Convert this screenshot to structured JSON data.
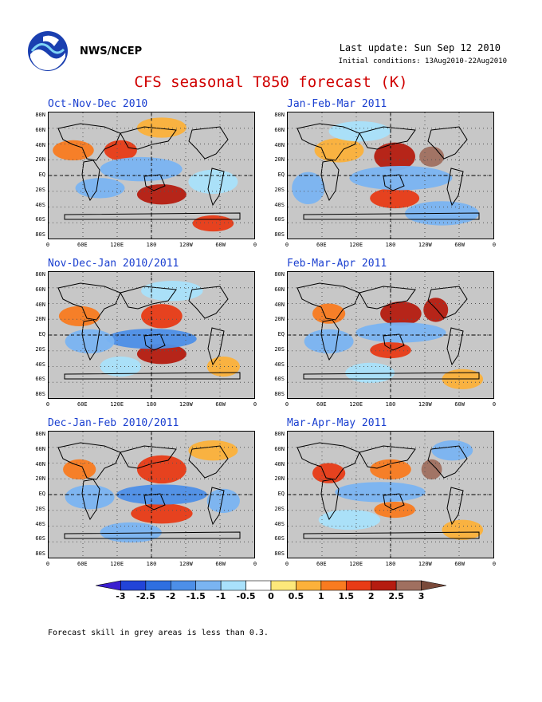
{
  "header": {
    "agency": "NWS/NCEP",
    "last_update": "Last update: Sun Sep 12 2010",
    "initial_conditions": "Initial conditions: 13Aug2010-22Aug2010",
    "logo_icon": "noaa-logo-icon"
  },
  "title": "CFS seasonal T850 forecast (K)",
  "panels": [
    {
      "title": "Oct-Nov-Dec 2010"
    },
    {
      "title": "Jan-Feb-Mar 2011"
    },
    {
      "title": "Nov-Dec-Jan 2010/2011"
    },
    {
      "title": "Feb-Mar-Apr 2011"
    },
    {
      "title": "Dec-Jan-Feb 2010/2011"
    },
    {
      "title": "Mar-Apr-May 2011"
    }
  ],
  "lat_labels": [
    "80N",
    "60N",
    "40N",
    "20N",
    "EQ",
    "20S",
    "40S",
    "60S",
    "80S"
  ],
  "lon_labels": [
    "0",
    "60E",
    "120E",
    "180",
    "120W",
    "60W",
    "0"
  ],
  "colorbar": {
    "labels": [
      "-3",
      "-2.5",
      "-2",
      "-1.5",
      "-1",
      "-0.5",
      "0",
      "0.5",
      "1",
      "1.5",
      "2",
      "2.5",
      "3"
    ],
    "colors": [
      "#3b1fd0",
      "#2244d8",
      "#2f6fe0",
      "#4d8fe8",
      "#7ab4f2",
      "#a9e1fb",
      "#ffffff",
      "#fde87a",
      "#fcb13a",
      "#f97b20",
      "#e83b16",
      "#b51c10",
      "#a07060",
      "#7a4a3a"
    ]
  },
  "footnote": "Forecast skill in grey areas is less than 0.3."
}
